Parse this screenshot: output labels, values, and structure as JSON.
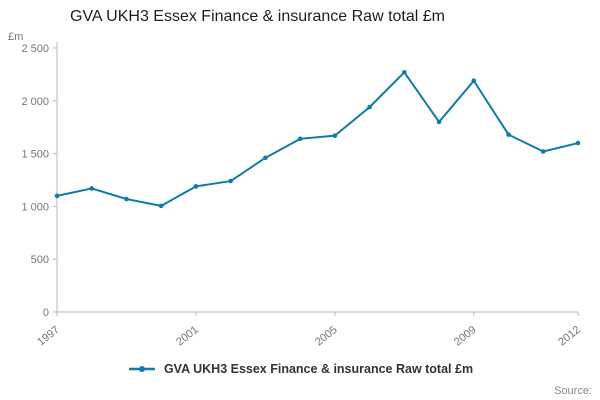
{
  "title": "GVA UKH3 Essex Finance & insurance Raw total £m",
  "y_axis_unit": "£m",
  "source_label": "Source:",
  "legend": {
    "label": "GVA UKH3 Essex Finance & insurance Raw total £m"
  },
  "colors": {
    "accent": "#0e7ca6",
    "axis": "#b9b9b9",
    "tick_text": "#777777",
    "title_text": "#1f1f1f"
  },
  "chart_data": {
    "type": "line",
    "title": "GVA UKH3 Essex Finance & insurance Raw total £m",
    "xlabel": "",
    "ylabel": "£m",
    "x": [
      1997,
      1998,
      1999,
      2000,
      2001,
      2002,
      2003,
      2004,
      2005,
      2006,
      2007,
      2008,
      2009,
      2010,
      2011,
      2012
    ],
    "values": [
      1100,
      1170,
      1070,
      1005,
      1190,
      1240,
      1460,
      1640,
      1670,
      1940,
      2270,
      1800,
      2190,
      1680,
      1520,
      1600
    ],
    "ylim": [
      0,
      2500
    ],
    "yticks": [
      0,
      500,
      1000,
      1500,
      2000,
      2500
    ],
    "ytick_labels": [
      "0",
      "500",
      "1 000",
      "1 500",
      "2 000",
      "2 500"
    ],
    "xtick_years": [
      1997,
      2001,
      2005,
      2009,
      2012
    ],
    "xtick_labels": [
      "1997",
      "2001",
      "2005",
      "2009",
      "2012"
    ],
    "grid": false,
    "legend_position": "bottom",
    "marker": "circle"
  }
}
